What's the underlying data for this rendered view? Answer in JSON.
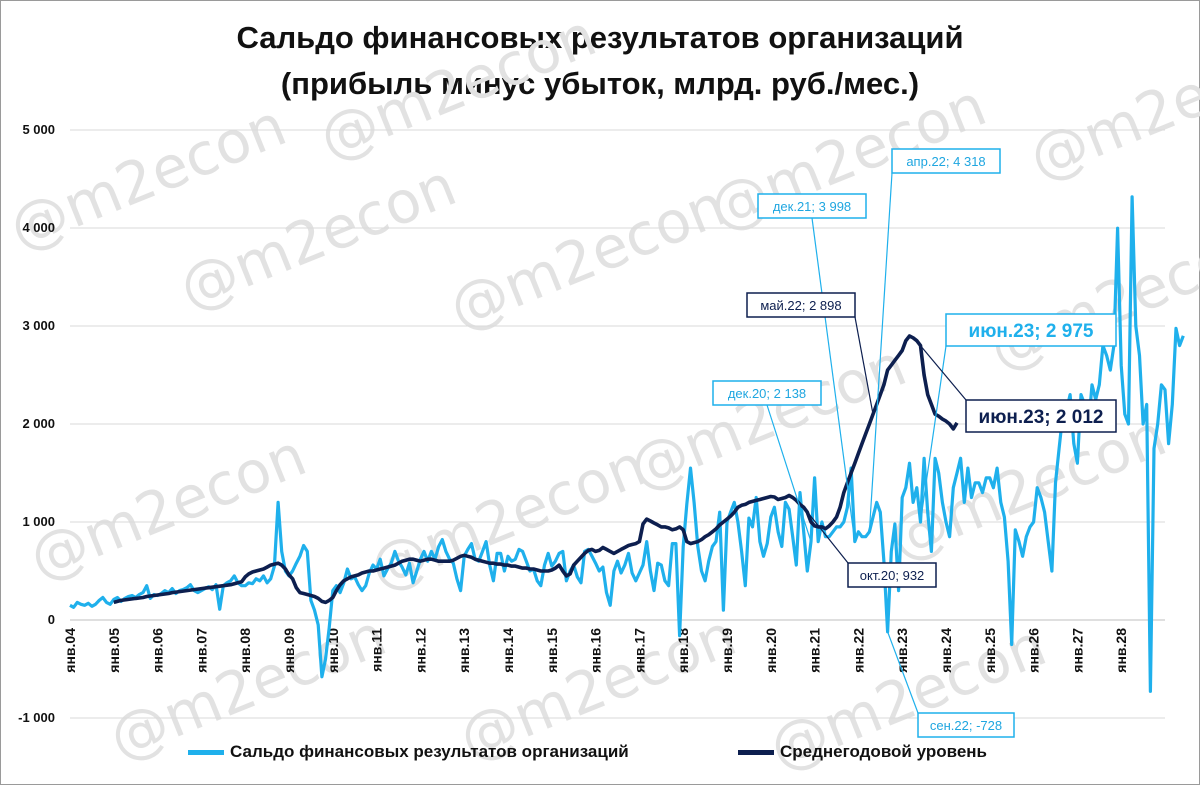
{
  "title_line1": "Сальдо финансовых результатов организаций",
  "title_line2": "(прибыль минус убыток, млрд. руб./мес.)",
  "watermark": "@m2econ",
  "colors": {
    "series1": "#1fb0ec",
    "series2": "#0d1f4f",
    "grid": "#d9d9d9"
  },
  "chart_data": {
    "type": "line",
    "ylim": [
      -1000,
      5000
    ],
    "yticks": [
      -1000,
      0,
      1000,
      2000,
      3000,
      4000,
      5000
    ],
    "ytick_labels": [
      "-1 000",
      "0",
      "1 000",
      "2 000",
      "3 000",
      "4 000",
      "5 000"
    ],
    "xlim_years": [
      2004,
      2029
    ],
    "xtick_labels": [
      "янв.04",
      "янв.05",
      "янв.06",
      "янв.07",
      "янв.08",
      "янв.09",
      "янв.10",
      "янв.11",
      "янв.12",
      "янв.13",
      "янв.14",
      "янв.15",
      "янв.16",
      "янв.17",
      "янв.18",
      "янв.19",
      "янв.20",
      "янв.21",
      "янв.22",
      "янв.23",
      "янв.24",
      "янв.25",
      "янв.26",
      "янв.27",
      "янв.28"
    ],
    "grid": "horizontal",
    "legend_position": "bottom",
    "series": [
      {
        "name": "Сальдо финансовых результатов организаций",
        "start": "2004-01",
        "values": [
          150,
          130,
          180,
          160,
          150,
          170,
          140,
          160,
          200,
          230,
          180,
          160,
          210,
          230,
          190,
          220,
          240,
          250,
          230,
          260,
          280,
          350,
          220,
          260,
          250,
          270,
          300,
          280,
          320,
          270,
          300,
          310,
          330,
          360,
          300,
          280,
          300,
          320,
          340,
          310,
          360,
          110,
          350,
          380,
          400,
          450,
          380,
          350,
          350,
          380,
          370,
          420,
          400,
          450,
          380,
          420,
          550,
          1200,
          700,
          500,
          450,
          500,
          580,
          650,
          760,
          700,
          200,
          100,
          -50,
          -580,
          -400,
          -80,
          300,
          350,
          280,
          380,
          520,
          420,
          440,
          360,
          300,
          350,
          480,
          560,
          520,
          620,
          450,
          520,
          580,
          700,
          600,
          540,
          460,
          580,
          380,
          500,
          620,
          700,
          600,
          700,
          620,
          750,
          820,
          700,
          620,
          580,
          420,
          300,
          650,
          720,
          780,
          620,
          600,
          700,
          800,
          560,
          400,
          680,
          680,
          500,
          650,
          600,
          620,
          720,
          700,
          600,
          500,
          520,
          400,
          350,
          560,
          680,
          550,
          600,
          680,
          700,
          400,
          500,
          560,
          440,
          380,
          700,
          720,
          650,
          580,
          500,
          540,
          280,
          150,
          500,
          600,
          480,
          560,
          680,
          480,
          400,
          480,
          560,
          800,
          500,
          300,
          580,
          560,
          400,
          350,
          780,
          780,
          -160,
          750,
          1180,
          1550,
          1200,
          750,
          500,
          400,
          600,
          750,
          800,
          1100,
          100,
          1000,
          1100,
          1200,
          1000,
          700,
          350,
          1040,
          950,
          1250,
          800,
          650,
          780,
          1050,
          1150,
          900,
          750,
          1200,
          1130,
          850,
          560,
          1300,
          900,
          500,
          800,
          1450,
          800,
          1000,
          850,
          850,
          900,
          950,
          950,
          1000,
          1150,
          1550,
          800,
          900,
          850,
          850,
          900,
          1050,
          1200,
          1100,
          600,
          -120,
          700,
          980,
          300,
          1250,
          1350,
          1600,
          1200,
          1350,
          1000,
          1650,
          1100,
          700,
          1650,
          1500,
          1200,
          1000,
          850,
          1350,
          1500,
          1650,
          1200,
          1550,
          1250,
          1400,
          1400,
          1300,
          1450,
          1450,
          1350,
          1550,
          1200,
          1050,
          600,
          -250,
          920,
          800,
          650,
          850,
          950,
          1000,
          1350,
          1250,
          1100,
          800,
          500,
          1400,
          1750,
          2100,
          2138,
          2300,
          1800,
          1600,
          2300,
          2200,
          1950,
          2400,
          2250,
          2400,
          2800,
          2700,
          2550,
          2800,
          3998,
          2600,
          2100,
          2000,
          4318,
          3000,
          2700,
          2000,
          2200,
          -728,
          1750,
          2000,
          2400,
          2350,
          1800,
          2200,
          2975,
          2800,
          2900
        ]
      },
      {
        "name": "Среднегодовой уровень",
        "start": "2005-01",
        "values": [
          180,
          190,
          200,
          205,
          210,
          215,
          220,
          225,
          230,
          240,
          245,
          250,
          255,
          260,
          265,
          270,
          280,
          285,
          290,
          295,
          300,
          305,
          310,
          315,
          320,
          325,
          330,
          335,
          340,
          345,
          350,
          355,
          360,
          370,
          380,
          390,
          440,
          470,
          490,
          500,
          510,
          520,
          540,
          560,
          570,
          580,
          560,
          520,
          460,
          420,
          330,
          280,
          270,
          260,
          250,
          240,
          220,
          190,
          180,
          200,
          230,
          300,
          360,
          400,
          420,
          440,
          450,
          460,
          480,
          490,
          500,
          500,
          510,
          520,
          530,
          540,
          550,
          560,
          580,
          600,
          610,
          620,
          620,
          610,
          600,
          610,
          620,
          620,
          610,
          600,
          600,
          600,
          600,
          610,
          630,
          650,
          660,
          650,
          640,
          620,
          610,
          600,
          590,
          580,
          580,
          570,
          570,
          560,
          560,
          550,
          550,
          540,
          530,
          530,
          520,
          520,
          510,
          500,
          500,
          500,
          510,
          530,
          560,
          500,
          450,
          470,
          560,
          600,
          640,
          680,
          710,
          720,
          700,
          710,
          740,
          720,
          700,
          680,
          700,
          720,
          740,
          760,
          770,
          780,
          800,
          980,
          1030,
          1010,
          990,
          970,
          950,
          950,
          940,
          920,
          930,
          950,
          920,
          800,
          780,
          790,
          800,
          820,
          850,
          870,
          900,
          930,
          970,
          1000,
          1030,
          1060,
          1100,
          1150,
          1170,
          1180,
          1200,
          1210,
          1220,
          1230,
          1240,
          1250,
          1260,
          1255,
          1230,
          1240,
          1250,
          1270,
          1250,
          1220,
          1180,
          1150,
          1100,
          1000,
          960,
          950,
          950,
          932,
          960,
          1000,
          1050,
          1150,
          1300,
          1400,
          1500,
          1600,
          1700,
          1800,
          1900,
          2000,
          2100,
          2200,
          2300,
          2400,
          2550,
          2600,
          2650,
          2700,
          2750,
          2850,
          2898,
          2880,
          2850,
          2800,
          2500,
          2300,
          2200,
          2100,
          2080,
          2050,
          2030,
          2000,
          1950,
          2012
        ]
      }
    ],
    "annotations": [
      {
        "label": "дек.21; 3 998",
        "series": 0
      },
      {
        "label": "апр.22; 4 318",
        "series": 0
      },
      {
        "label": "дек.20; 2 138",
        "series": 0
      },
      {
        "label": "сен.22; -728",
        "series": 0
      },
      {
        "label": "июн.23; 2 975",
        "series": 0
      },
      {
        "label": "май.22; 2 898",
        "series": 1
      },
      {
        "label": "окт.20; 932",
        "series": 1
      },
      {
        "label": "июн.23; 2 012",
        "series": 1
      }
    ]
  }
}
